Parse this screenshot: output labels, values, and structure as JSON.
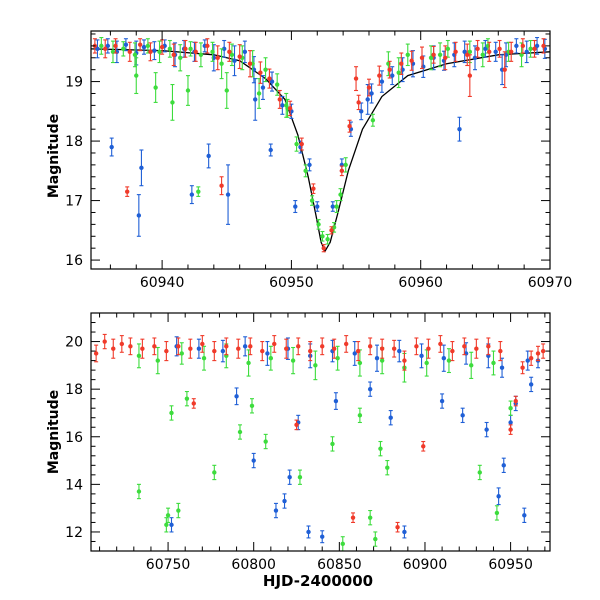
{
  "colors": {
    "blue": "#1f5fd6",
    "green": "#3ddc3d",
    "red": "#f03a2a",
    "model": "#000000",
    "frame": "#000000"
  },
  "chart_data": [
    {
      "type": "scatter",
      "title": "",
      "xlabel": "",
      "ylabel": "Magnitude",
      "xlim": [
        60934.5,
        60970
      ],
      "ylim": [
        19.85,
        15.85
      ],
      "y_inverted": true,
      "xticks": [
        60940,
        60950,
        60960,
        60970
      ],
      "xtick_labels": [
        "60940",
        "60950",
        "60960",
        "60970"
      ],
      "yticks": [
        16,
        17,
        18,
        19
      ],
      "ytick_labels": [
        "16",
        "17",
        "18",
        "19"
      ],
      "legend": "none",
      "model_curve": {
        "name": "microlensing model",
        "x": [
          60934.5,
          60940,
          60944,
          60946,
          60948,
          60949.5,
          60950.5,
          60951.3,
          60951.9,
          60952.3,
          60952.6,
          60953.0,
          60953.6,
          60954.4,
          60955.5,
          60957,
          60959,
          60962,
          60966,
          60970
        ],
        "y": [
          19.55,
          19.52,
          19.45,
          19.35,
          19.05,
          18.7,
          18.1,
          17.4,
          16.75,
          16.3,
          16.15,
          16.3,
          16.8,
          17.5,
          18.2,
          18.75,
          19.1,
          19.3,
          19.45,
          19.5
        ]
      },
      "series": [
        {
          "name": "blue",
          "x": [
            60935.0,
            60935.8,
            60936.5,
            60937.2,
            60938.0,
            60938.6,
            60939.4,
            60940.2,
            60941.0,
            60941.7,
            60942.5,
            60943.3,
            60944.0,
            60944.8,
            60945.6,
            60946.4,
            60947.1,
            60947.8,
            60948.5,
            60949.3,
            60950.0,
            60950.7,
            60951.4,
            60952.0,
            60953.2,
            60953.9,
            60954.6,
            60955.4,
            60956.2,
            60957.0,
            60957.8,
            60958.6,
            60959.4,
            60960.2,
            60961.0,
            60961.8,
            60962.6,
            60963.4,
            60964.2,
            60965.0,
            60965.8,
            60966.6,
            60967.4,
            60968.2,
            60969.0,
            60969.6,
            60936.1,
            60938.2,
            60938.4,
            60942.3,
            60943.6,
            60945.1,
            60947.2,
            60948.4,
            60950.3,
            60955.9,
            60963.0,
            60966.3
          ],
          "y": [
            19.55,
            19.6,
            19.5,
            19.62,
            19.48,
            19.58,
            19.52,
            19.6,
            19.45,
            19.55,
            19.5,
            19.6,
            19.4,
            19.55,
            19.35,
            19.5,
            19.2,
            18.9,
            19.0,
            18.6,
            18.5,
            17.9,
            17.6,
            16.9,
            16.9,
            17.6,
            18.2,
            18.5,
            18.8,
            19.0,
            19.1,
            19.2,
            19.3,
            19.25,
            19.4,
            19.35,
            19.45,
            19.5,
            19.4,
            19.55,
            19.5,
            19.45,
            19.6,
            19.5,
            19.6,
            19.55,
            17.9,
            16.75,
            17.55,
            17.1,
            17.75,
            17.1,
            18.7,
            17.85,
            16.9,
            18.7,
            18.2,
            19.2
          ],
          "err": [
            0.15,
            0.12,
            0.18,
            0.1,
            0.2,
            0.12,
            0.15,
            0.1,
            0.2,
            0.14,
            0.16,
            0.1,
            0.22,
            0.14,
            0.25,
            0.18,
            0.22,
            0.2,
            0.16,
            0.15,
            0.12,
            0.1,
            0.1,
            0.08,
            0.08,
            0.1,
            0.12,
            0.14,
            0.16,
            0.18,
            0.15,
            0.2,
            0.22,
            0.18,
            0.2,
            0.16,
            0.2,
            0.18,
            0.2,
            0.14,
            0.16,
            0.2,
            0.12,
            0.18,
            0.14,
            0.16,
            0.15,
            0.35,
            0.3,
            0.15,
            0.2,
            0.5,
            0.35,
            0.1,
            0.1,
            0.25,
            0.2,
            0.25
          ]
        },
        {
          "name": "green",
          "x": [
            60935.3,
            60936.2,
            60937.0,
            60937.9,
            60938.9,
            60939.8,
            60940.6,
            60941.4,
            60942.2,
            60943.0,
            60943.9,
            60944.6,
            60945.4,
            60946.2,
            60947.0,
            60948.0,
            60948.9,
            60949.7,
            60950.4,
            60951.1,
            60951.6,
            60952.1,
            60952.4,
            60952.8,
            60953.3,
            60953.8,
            60954.2,
            60957.5,
            60959.0,
            60960.8,
            60962.1,
            60963.8,
            60965.2,
            60966.8,
            60968.5,
            60938.0,
            60939.5,
            60940.8,
            60942.0,
            60942.8,
            60945.0,
            60947.5,
            60949.6,
            60953.5,
            60956.3,
            60958.3,
            60961.5,
            60964.8,
            60967.8
          ],
          "y": [
            19.6,
            19.5,
            19.55,
            19.45,
            19.6,
            19.5,
            19.55,
            19.4,
            19.55,
            19.45,
            19.5,
            19.3,
            19.45,
            19.4,
            19.3,
            19.2,
            18.95,
            18.55,
            17.95,
            17.5,
            17.0,
            16.6,
            16.4,
            16.35,
            16.55,
            17.1,
            17.6,
            19.3,
            19.45,
            19.4,
            19.55,
            19.5,
            19.6,
            19.5,
            19.55,
            19.1,
            18.9,
            18.65,
            18.85,
            17.15,
            18.85,
            18.8,
            18.6,
            16.9,
            18.35,
            19.15,
            19.45,
            19.45,
            19.45
          ],
          "err": [
            0.14,
            0.18,
            0.12,
            0.2,
            0.12,
            0.18,
            0.14,
            0.22,
            0.12,
            0.2,
            0.16,
            0.25,
            0.18,
            0.2,
            0.22,
            0.2,
            0.18,
            0.15,
            0.12,
            0.1,
            0.08,
            0.08,
            0.08,
            0.08,
            0.08,
            0.1,
            0.12,
            0.2,
            0.18,
            0.2,
            0.14,
            0.18,
            0.12,
            0.16,
            0.14,
            0.3,
            0.25,
            0.3,
            0.25,
            0.08,
            0.3,
            0.25,
            0.2,
            0.1,
            0.1,
            0.25,
            0.2,
            0.2,
            0.2
          ]
        },
        {
          "name": "red",
          "x": [
            60934.8,
            60935.6,
            60936.4,
            60937.5,
            60938.3,
            60939.1,
            60940.0,
            60940.9,
            60941.8,
            60942.6,
            60943.5,
            60944.3,
            60945.2,
            60946.0,
            60946.8,
            60947.6,
            60948.3,
            60949.1,
            60949.9,
            60950.8,
            60951.7,
            60952.5,
            60953.1,
            60953.9,
            60954.5,
            60955.2,
            60956.0,
            60956.8,
            60957.6,
            60958.5,
            60959.3,
            60960.1,
            60961.0,
            60961.9,
            60962.7,
            60963.6,
            60964.4,
            60965.3,
            60966.1,
            60967.0,
            60967.9,
            60968.8,
            60969.5,
            60937.3,
            60944.6,
            60955.0,
            60963.8,
            60966.5
          ],
          "y": [
            19.6,
            19.55,
            19.6,
            19.5,
            19.62,
            19.5,
            19.58,
            19.45,
            19.55,
            19.5,
            19.6,
            19.4,
            19.5,
            19.42,
            19.3,
            19.15,
            19.05,
            18.7,
            18.55,
            17.95,
            17.2,
            16.2,
            16.5,
            17.5,
            18.25,
            18.65,
            18.9,
            19.1,
            19.2,
            19.3,
            19.35,
            19.4,
            19.45,
            19.4,
            19.5,
            19.45,
            19.55,
            19.5,
            19.55,
            19.5,
            19.6,
            19.55,
            19.6,
            17.15,
            17.25,
            19.05,
            19.1,
            19.2
          ],
          "err": [
            0.12,
            0.15,
            0.12,
            0.16,
            0.1,
            0.15,
            0.12,
            0.18,
            0.14,
            0.16,
            0.12,
            0.2,
            0.16,
            0.2,
            0.22,
            0.18,
            0.16,
            0.15,
            0.12,
            0.1,
            0.08,
            0.06,
            0.06,
            0.08,
            0.1,
            0.12,
            0.14,
            0.16,
            0.14,
            0.18,
            0.16,
            0.18,
            0.14,
            0.2,
            0.16,
            0.18,
            0.14,
            0.16,
            0.14,
            0.16,
            0.12,
            0.14,
            0.12,
            0.08,
            0.15,
            0.2,
            0.35,
            0.3
          ]
        }
      ]
    },
    {
      "type": "scatter",
      "title": "",
      "xlabel": "HJD-2400000",
      "ylabel": "Magnitude",
      "xlim": [
        60705,
        60973
      ],
      "ylim": [
        21.2,
        11.2
      ],
      "y_inverted": true,
      "xticks": [
        60750,
        60800,
        60850,
        60900,
        60950
      ],
      "xtick_labels": [
        "60750",
        "60800",
        "60850",
        "60900",
        "60950"
      ],
      "yticks": [
        12,
        14,
        16,
        18,
        20
      ],
      "ytick_labels": [
        "12",
        "14",
        "16",
        "18",
        "20"
      ],
      "legend": "none",
      "series": [
        {
          "name": "blue",
          "x": [
            60755,
            60768,
            60782,
            60795,
            60808,
            60820,
            60833,
            60846,
            60859,
            60872,
            60885,
            60898,
            60911,
            60924,
            60937,
            60945,
            60953,
            60960,
            60752,
            60790,
            60800,
            60813,
            60818,
            60821,
            60826,
            60832,
            60840,
            60848,
            60868,
            60880,
            60888,
            60910,
            60922,
            60936,
            60943,
            60946,
            60950,
            60958,
            60962,
            60966
          ],
          "y": [
            19.8,
            19.7,
            19.6,
            19.8,
            19.5,
            19.7,
            19.4,
            19.6,
            19.5,
            19.3,
            19.6,
            19.4,
            19.3,
            19.5,
            19.4,
            18.9,
            17.4,
            19.2,
            12.3,
            17.7,
            15.0,
            12.9,
            13.3,
            14.3,
            16.6,
            12.0,
            11.8,
            17.5,
            18.0,
            16.8,
            12.0,
            17.5,
            16.9,
            16.3,
            13.5,
            14.8,
            16.6,
            12.7,
            18.2,
            19.2
          ],
          "err": [
            0.4,
            0.4,
            0.45,
            0.4,
            0.5,
            0.45,
            0.5,
            0.45,
            0.5,
            0.55,
            0.45,
            0.5,
            0.55,
            0.45,
            0.5,
            0.4,
            0.3,
            0.4,
            0.3,
            0.35,
            0.3,
            0.3,
            0.3,
            0.3,
            0.3,
            0.25,
            0.25,
            0.35,
            0.3,
            0.3,
            0.25,
            0.3,
            0.3,
            0.3,
            0.35,
            0.3,
            0.3,
            0.3,
            0.3,
            0.3
          ]
        },
        {
          "name": "green",
          "x": [
            60733,
            60744,
            60758,
            60771,
            60784,
            60797,
            60810,
            60823,
            60836,
            60849,
            60862,
            60875,
            60888,
            60901,
            60914,
            60927,
            60940,
            60950,
            60733,
            60749,
            60750,
            60756,
            60761,
            60777,
            60799,
            60807,
            60827,
            60852,
            60868,
            60871,
            60874,
            60878,
            60932,
            60942,
            60752,
            60792,
            60846,
            60862
          ],
          "y": [
            19.4,
            19.2,
            19.5,
            19.3,
            19.4,
            19.1,
            19.3,
            19.2,
            19.0,
            19.3,
            19.1,
            19.2,
            18.9,
            19.1,
            19.2,
            19.0,
            19.1,
            17.2,
            13.7,
            12.3,
            12.7,
            12.9,
            17.6,
            14.5,
            17.3,
            15.8,
            14.3,
            11.5,
            12.6,
            11.7,
            15.5,
            14.7,
            14.5,
            12.8,
            17.0,
            16.2,
            15.7,
            16.9
          ],
          "err": [
            0.5,
            0.55,
            0.45,
            0.5,
            0.5,
            0.55,
            0.5,
            0.55,
            0.6,
            0.5,
            0.55,
            0.55,
            0.6,
            0.55,
            0.5,
            0.55,
            0.5,
            0.3,
            0.3,
            0.3,
            0.3,
            0.3,
            0.3,
            0.3,
            0.3,
            0.3,
            0.3,
            0.3,
            0.3,
            0.3,
            0.3,
            0.3,
            0.3,
            0.3,
            0.3,
            0.3,
            0.3,
            0.3
          ]
        },
        {
          "name": "red",
          "x": [
            60708,
            60713,
            60718,
            60723,
            60728,
            60735,
            60742,
            60749,
            60756,
            60763,
            60770,
            60777,
            60784,
            60791,
            60798,
            60805,
            60812,
            60819,
            60826,
            60833,
            60840,
            60847,
            60854,
            60861,
            60868,
            60875,
            60882,
            60888,
            60895,
            60902,
            60909,
            60916,
            60923,
            60930,
            60937,
            60944,
            60950,
            60953,
            60957,
            60962,
            60966,
            60969,
            60765,
            60825,
            60858,
            60884,
            60899
          ],
          "y": [
            19.5,
            20.0,
            19.7,
            19.9,
            19.8,
            19.7,
            19.8,
            19.6,
            19.8,
            19.7,
            19.9,
            19.6,
            19.8,
            19.7,
            19.8,
            19.6,
            19.9,
            19.7,
            19.8,
            19.6,
            19.8,
            19.7,
            19.9,
            19.6,
            19.8,
            19.7,
            19.7,
            19.2,
            19.8,
            19.7,
            19.9,
            19.6,
            19.8,
            19.7,
            19.8,
            19.6,
            16.3,
            17.5,
            18.9,
            19.3,
            19.5,
            19.6,
            17.4,
            16.5,
            12.6,
            12.2,
            15.6
          ],
          "err": [
            0.35,
            0.3,
            0.4,
            0.35,
            0.35,
            0.4,
            0.35,
            0.4,
            0.35,
            0.4,
            0.35,
            0.4,
            0.35,
            0.4,
            0.35,
            0.4,
            0.35,
            0.4,
            0.35,
            0.4,
            0.35,
            0.4,
            0.35,
            0.4,
            0.35,
            0.4,
            0.35,
            0.4,
            0.35,
            0.4,
            0.35,
            0.4,
            0.35,
            0.4,
            0.35,
            0.4,
            0.2,
            0.2,
            0.25,
            0.3,
            0.3,
            0.3,
            0.2,
            0.2,
            0.2,
            0.2,
            0.2
          ]
        }
      ]
    }
  ]
}
